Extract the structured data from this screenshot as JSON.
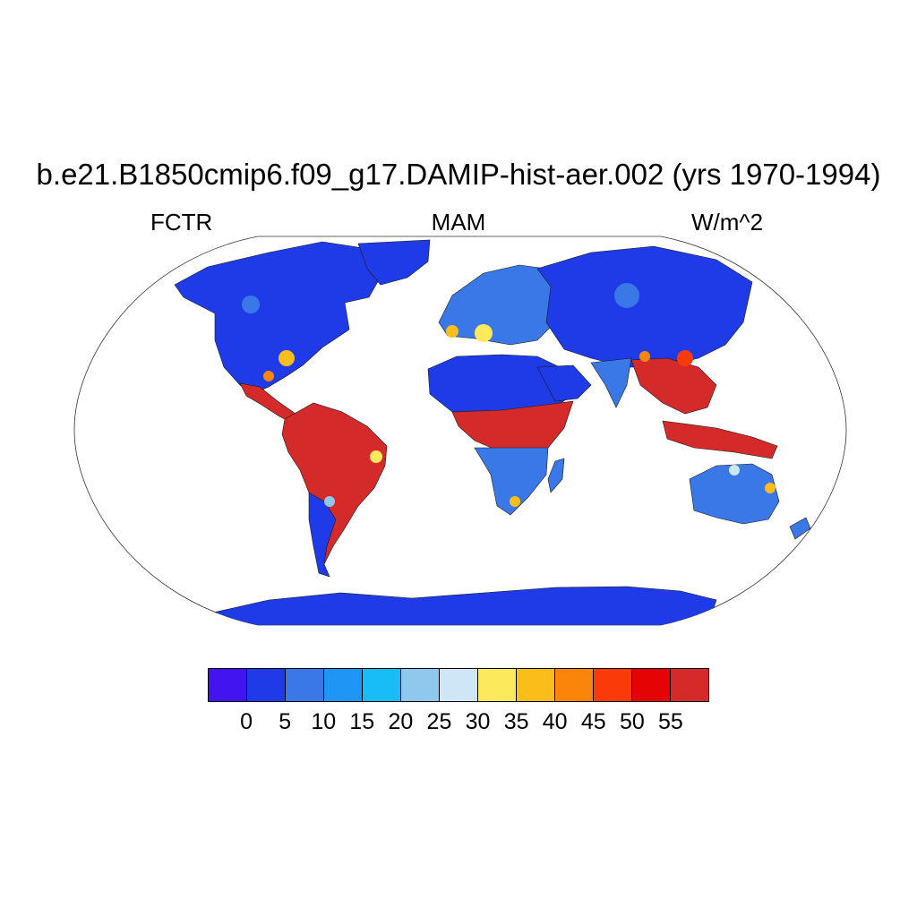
{
  "title": "b.e21.B1850cmip6.f09_g17.DAMIP-hist-aer.002 (yrs 1970-1994)",
  "subtitle_left": "FCTR",
  "subtitle_center": "MAM",
  "subtitle_right": "W/m^2",
  "colorbar": {
    "colors": [
      "#4215f0",
      "#1f3be8",
      "#3a78e8",
      "#1f96f5",
      "#18bcf6",
      "#90c8ed",
      "#cfe6f6",
      "#fde95c",
      "#fbbd1a",
      "#fb850a",
      "#fb3a09",
      "#e50404",
      "#d42a2a"
    ],
    "labels": [
      "0",
      "5",
      "10",
      "15",
      "20",
      "25",
      "30",
      "35",
      "40",
      "45",
      "50",
      "55"
    ]
  },
  "map": {
    "projection": "robinson",
    "ocean_color": "#ffffff",
    "land_base_color": "#1f3be8"
  }
}
